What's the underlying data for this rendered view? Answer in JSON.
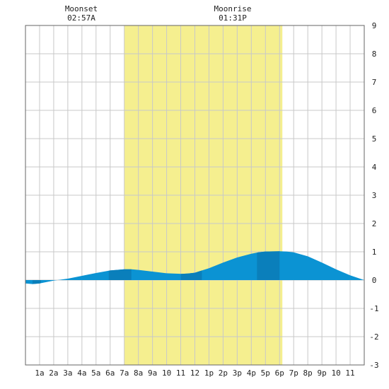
{
  "moon": {
    "moonset_label": "Moonset",
    "moonset_time": "02:57A",
    "moonrise_label": "Moonrise",
    "moonrise_time": "01:31P"
  },
  "chart_data": {
    "type": "area",
    "title": "",
    "xlabel": "",
    "ylabel": "",
    "x_ticks": [
      "1a",
      "2a",
      "3a",
      "4a",
      "5a",
      "6a",
      "7a",
      "8a",
      "9a",
      "10",
      "11",
      "12",
      "1p",
      "2p",
      "3p",
      "4p",
      "5p",
      "6p",
      "7p",
      "8p",
      "9p",
      "10",
      "11"
    ],
    "y_ticks": [
      "9",
      "8",
      "7",
      "6",
      "5",
      "4",
      "3",
      "2",
      "1",
      "0",
      "-1",
      "-2",
      "-3"
    ],
    "ylim": [
      -3,
      9
    ],
    "xlim_hours": [
      0,
      24
    ],
    "grid": true,
    "daylight_hours": [
      7.0,
      18.2
    ],
    "series": [
      {
        "x": [
          0,
          0.5,
          1,
          1.5,
          2,
          3,
          4,
          5,
          6,
          7,
          7.5,
          8,
          9,
          10,
          11,
          11.5,
          12,
          13,
          14,
          15,
          16,
          16.5,
          17,
          18,
          18.5,
          19,
          20,
          21,
          22,
          23,
          24
        ],
        "y": [
          -0.12,
          -0.14,
          -0.12,
          -0.07,
          -0.02,
          0.05,
          0.15,
          0.25,
          0.34,
          0.38,
          0.38,
          0.36,
          0.3,
          0.24,
          0.22,
          0.23,
          0.26,
          0.42,
          0.62,
          0.8,
          0.93,
          0.98,
          1.01,
          1.02,
          1.01,
          0.98,
          0.84,
          0.62,
          0.38,
          0.17,
          0.0
        ]
      }
    ],
    "colors": {
      "tide_fill": "#0b93d3",
      "tide_dark": "#0a7fbb",
      "daylight": "#f5ef8f",
      "grid": "#c8c8c8",
      "axis": "#666666"
    }
  }
}
